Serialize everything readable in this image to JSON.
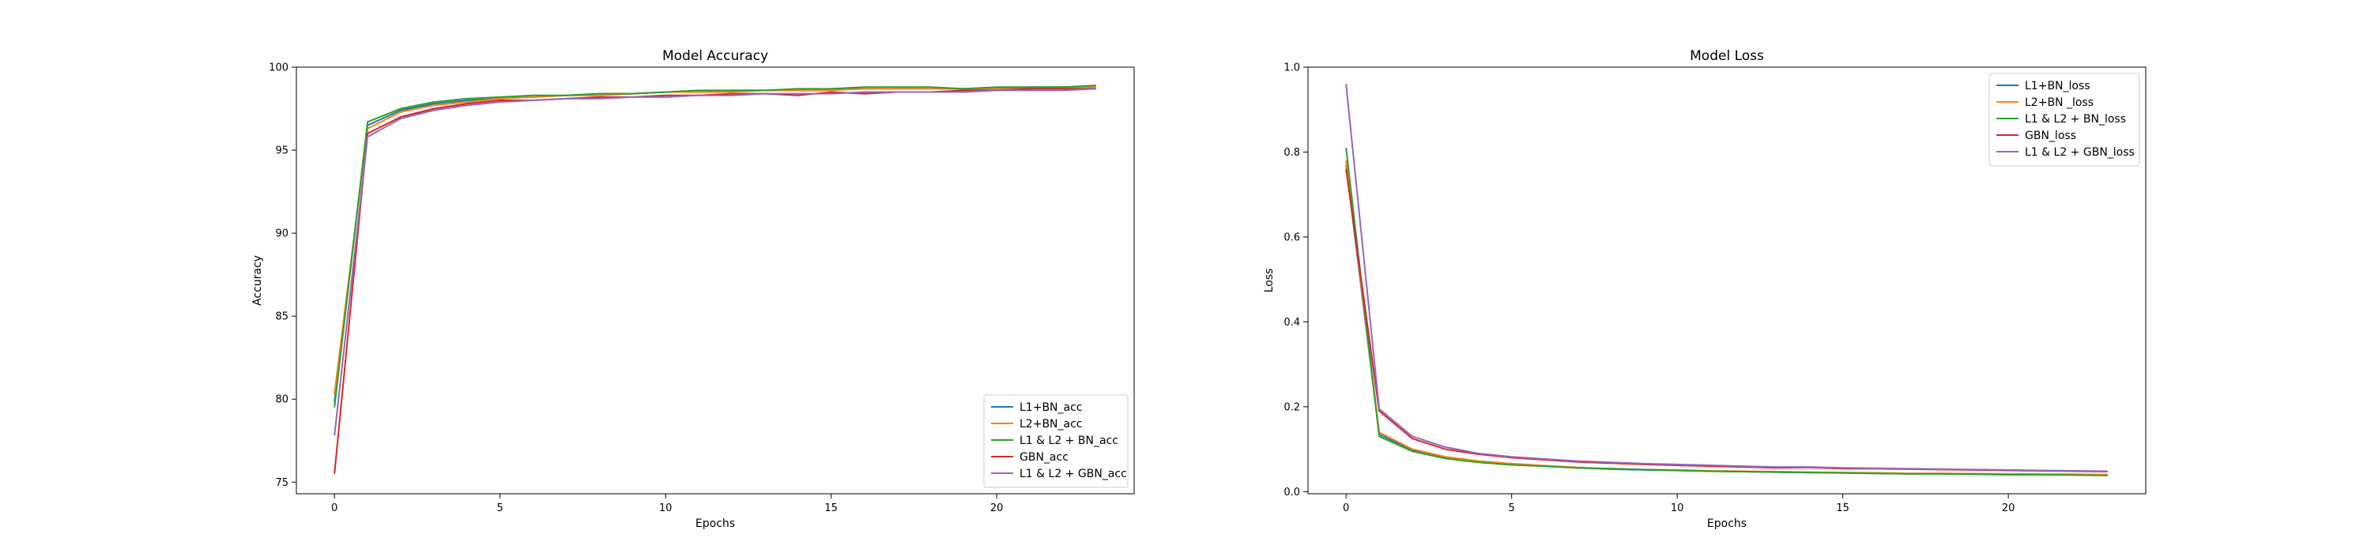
{
  "chart_data": [
    {
      "type": "line",
      "title": "Model Accuracy",
      "xlabel": "Epochs",
      "ylabel": "Accuracy",
      "xlim": [
        -1.15,
        24.15
      ],
      "ylim": [
        74.3,
        100.0
      ],
      "xticks": [
        0,
        5,
        10,
        15,
        20
      ],
      "yticks": [
        75,
        80,
        85,
        90,
        95,
        100
      ],
      "legend_position": "bottom-right",
      "x": [
        0,
        1,
        2,
        3,
        4,
        5,
        6,
        7,
        8,
        9,
        10,
        11,
        12,
        13,
        14,
        15,
        16,
        17,
        18,
        19,
        20,
        21,
        22,
        23
      ],
      "series": [
        {
          "name": "L1+BN_acc",
          "color": "#1f77b4",
          "values": [
            79.8,
            96.5,
            97.4,
            97.8,
            98.0,
            98.1,
            98.2,
            98.3,
            98.4,
            98.4,
            98.5,
            98.5,
            98.6,
            98.6,
            98.6,
            98.7,
            98.7,
            98.7,
            98.7,
            98.7,
            98.7,
            98.8,
            98.8,
            98.8
          ]
        },
        {
          "name": "L2+BN_acc",
          "color": "#ff7f0e",
          "values": [
            80.3,
            96.3,
            97.3,
            97.7,
            97.9,
            98.1,
            98.2,
            98.3,
            98.3,
            98.4,
            98.5,
            98.5,
            98.5,
            98.6,
            98.6,
            98.6,
            98.7,
            98.7,
            98.7,
            98.7,
            98.7,
            98.7,
            98.8,
            98.8
          ]
        },
        {
          "name": "L1 & L2 + BN_acc",
          "color": "#2ca02c",
          "values": [
            79.5,
            96.7,
            97.5,
            97.9,
            98.1,
            98.2,
            98.3,
            98.3,
            98.4,
            98.4,
            98.5,
            98.6,
            98.6,
            98.6,
            98.7,
            98.7,
            98.8,
            98.8,
            98.8,
            98.7,
            98.8,
            98.8,
            98.8,
            98.9
          ]
        },
        {
          "name": "GBN_acc",
          "color": "#d62728",
          "values": [
            75.5,
            96.0,
            97.0,
            97.5,
            97.8,
            98.0,
            98.0,
            98.1,
            98.2,
            98.2,
            98.3,
            98.3,
            98.4,
            98.4,
            98.3,
            98.5,
            98.4,
            98.5,
            98.5,
            98.6,
            98.6,
            98.7,
            98.7,
            98.7
          ]
        },
        {
          "name": "L1 & L2 + GBN_acc",
          "color": "#9467bd",
          "values": [
            77.8,
            95.8,
            96.9,
            97.4,
            97.7,
            97.9,
            98.0,
            98.1,
            98.1,
            98.2,
            98.2,
            98.3,
            98.3,
            98.4,
            98.4,
            98.4,
            98.5,
            98.5,
            98.5,
            98.5,
            98.6,
            98.6,
            98.6,
            98.7
          ]
        }
      ]
    },
    {
      "type": "line",
      "title": "Model Loss",
      "xlabel": "Epochs",
      "ylabel": "Loss",
      "xlim": [
        -1.15,
        24.15
      ],
      "ylim": [
        -0.005,
        1.0
      ],
      "xticks": [
        0,
        5,
        10,
        15,
        20
      ],
      "yticks": [
        0.0,
        0.2,
        0.4,
        0.6,
        0.8,
        1.0
      ],
      "ytick_labels": [
        "0.0",
        "0.2",
        "0.4",
        "0.6",
        "0.8",
        "1.0"
      ],
      "legend_position": "top-right",
      "x": [
        0,
        1,
        2,
        3,
        4,
        5,
        6,
        7,
        8,
        9,
        10,
        11,
        12,
        13,
        14,
        15,
        16,
        17,
        18,
        19,
        20,
        21,
        22,
        23
      ],
      "series": [
        {
          "name": "L1+BN_loss",
          "color": "#1f77b4",
          "values": [
            0.77,
            0.135,
            0.098,
            0.08,
            0.07,
            0.064,
            0.06,
            0.056,
            0.053,
            0.051,
            0.05,
            0.048,
            0.047,
            0.046,
            0.045,
            0.044,
            0.043,
            0.042,
            0.042,
            0.041,
            0.04,
            0.04,
            0.04,
            0.039
          ]
        },
        {
          "name": "L2+BN _loss",
          "color": "#ff7f0e",
          "values": [
            0.78,
            0.14,
            0.1,
            0.082,
            0.072,
            0.066,
            0.061,
            0.057,
            0.054,
            0.052,
            0.051,
            0.049,
            0.048,
            0.047,
            0.046,
            0.045,
            0.044,
            0.043,
            0.043,
            0.042,
            0.042,
            0.041,
            0.041,
            0.04
          ]
        },
        {
          "name": "L1 & L2 + BN_loss",
          "color": "#2ca02c",
          "values": [
            0.81,
            0.13,
            0.095,
            0.078,
            0.069,
            0.063,
            0.06,
            0.056,
            0.054,
            0.052,
            0.05,
            0.048,
            0.047,
            0.046,
            0.045,
            0.044,
            0.043,
            0.042,
            0.042,
            0.041,
            0.04,
            0.04,
            0.039,
            0.038
          ]
        },
        {
          "name": "GBN_loss",
          "color": "#d62728",
          "values": [
            0.76,
            0.19,
            0.125,
            0.1,
            0.088,
            0.08,
            0.075,
            0.07,
            0.067,
            0.064,
            0.062,
            0.06,
            0.058,
            0.056,
            0.057,
            0.054,
            0.054,
            0.053,
            0.052,
            0.051,
            0.05,
            0.049,
            0.048,
            0.047
          ]
        },
        {
          "name": "L1 & L2 + GBN_loss",
          "color": "#9467bd",
          "values": [
            0.96,
            0.195,
            0.13,
            0.105,
            0.09,
            0.082,
            0.077,
            0.072,
            0.069,
            0.066,
            0.064,
            0.062,
            0.06,
            0.058,
            0.058,
            0.056,
            0.055,
            0.054,
            0.053,
            0.052,
            0.051,
            0.05,
            0.049,
            0.048
          ]
        }
      ]
    }
  ]
}
